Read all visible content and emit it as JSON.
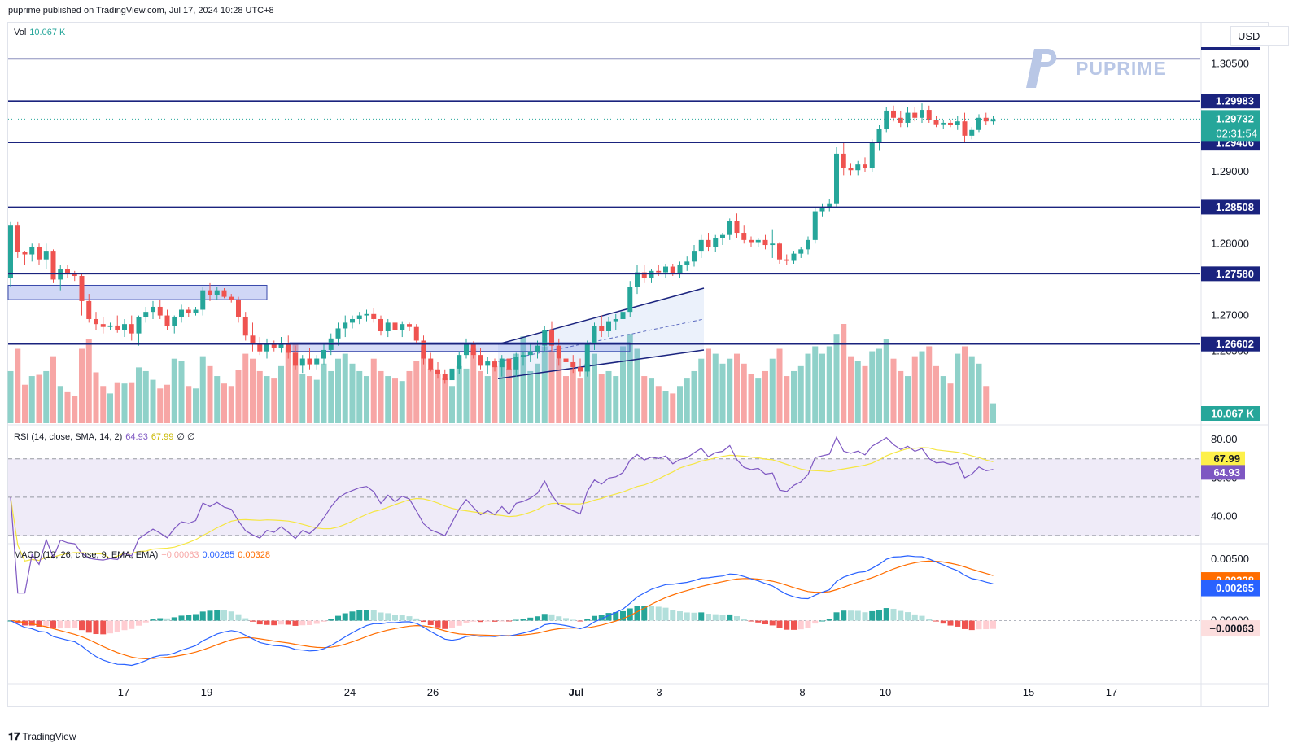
{
  "header": {
    "published": "puprime published on TradingView.com, Jul 17, 2024 10:28 UTC+8",
    "currency": "USD",
    "watermark": "PUPRIME",
    "footer": "TradingView"
  },
  "indicators": {
    "vol": {
      "name": "Vol",
      "value": "10.067 K",
      "badge": "10.067 K"
    },
    "rsi": {
      "name": "RSI (14, close, SMA, 14, 2)",
      "value": "64.93",
      "sma": "67.99",
      "extra": "∅ ∅"
    },
    "macd": {
      "name": "MACD (12, 26, close, 9, EMA, EMA)",
      "hist": "−0.00063",
      "macd": "0.00265",
      "signal": "0.00328"
    }
  },
  "colors": {
    "up": "#26a69a",
    "down": "#ef5350",
    "level_line": "#1a237e",
    "macd_line": "#2962ff",
    "signal_line": "#ff6d00",
    "rsi_line": "#7e57c2",
    "rsi_sma": "#f5e642"
  },
  "chart_data": {
    "type": "candlestick",
    "symbol": "GBPUSD",
    "price_axis": {
      "ticks": [
        "1.30500",
        "1.29000",
        "1.28000",
        "1.27000",
        "1.26500"
      ],
      "range": [
        1.255,
        1.3105
      ]
    },
    "levels": [
      {
        "value": 1.3057,
        "label": ""
      },
      {
        "value": 1.29983,
        "label": "1.29983"
      },
      {
        "value": 1.29406,
        "label": "1.29406"
      },
      {
        "value": 1.28508,
        "label": "1.28508"
      },
      {
        "value": 1.2758,
        "label": "1.27580"
      },
      {
        "value": 1.26602,
        "label": "1.26602"
      }
    ],
    "last_price": {
      "value": "1.29732",
      "countdown": "02:31:54"
    },
    "x_axis_labels": [
      "17",
      "19",
      "24",
      "26",
      "Jul",
      "3",
      "8",
      "10",
      "15",
      "17"
    ],
    "candles": [
      [
        1.2752,
        1.283,
        1.274,
        1.2825,
        420
      ],
      [
        1.2825,
        1.283,
        1.278,
        1.2788,
        600
      ],
      [
        1.2788,
        1.279,
        1.277,
        1.2785,
        310
      ],
      [
        1.2785,
        1.28,
        1.2775,
        1.2795,
        380
      ],
      [
        1.2795,
        1.28,
        1.277,
        1.2778,
        390
      ],
      [
        1.2778,
        1.28,
        1.2765,
        1.279,
        420
      ],
      [
        1.279,
        1.2792,
        1.2745,
        1.275,
        540
      ],
      [
        1.275,
        1.277,
        1.2735,
        1.2765,
        300
      ],
      [
        1.2765,
        1.277,
        1.2752,
        1.2758,
        250
      ],
      [
        1.2758,
        1.2762,
        1.2748,
        1.2755,
        220
      ],
      [
        1.2755,
        1.2758,
        1.27,
        1.272,
        600
      ],
      [
        1.272,
        1.273,
        1.269,
        1.2695,
        680
      ],
      [
        1.2695,
        1.2705,
        1.268,
        1.2688,
        410
      ],
      [
        1.2688,
        1.2698,
        1.2675,
        1.2684,
        300
      ],
      [
        1.2684,
        1.269,
        1.268,
        1.2686,
        240
      ],
      [
        1.2686,
        1.27,
        1.2676,
        1.268,
        330
      ],
      [
        1.268,
        1.2695,
        1.267,
        1.2688,
        320
      ],
      [
        1.2688,
        1.27,
        1.2665,
        1.2675,
        330
      ],
      [
        1.2675,
        1.27,
        1.2658,
        1.2698,
        450
      ],
      [
        1.2698,
        1.2712,
        1.269,
        1.2705,
        420
      ],
      [
        1.2705,
        1.272,
        1.2695,
        1.2712,
        350
      ],
      [
        1.2712,
        1.2722,
        1.2695,
        1.27,
        280
      ],
      [
        1.27,
        1.2708,
        1.268,
        1.2685,
        310
      ],
      [
        1.2685,
        1.27,
        1.2675,
        1.2698,
        520
      ],
      [
        1.2698,
        1.2715,
        1.269,
        1.2708,
        500
      ],
      [
        1.2708,
        1.2712,
        1.2698,
        1.2704,
        300
      ],
      [
        1.2704,
        1.2712,
        1.27,
        1.2708,
        280
      ],
      [
        1.2708,
        1.274,
        1.27,
        1.2735,
        540
      ],
      [
        1.2735,
        1.2745,
        1.272,
        1.2728,
        460
      ],
      [
        1.2728,
        1.274,
        1.2722,
        1.2735,
        380
      ],
      [
        1.2735,
        1.2738,
        1.2724,
        1.2726,
        320
      ],
      [
        1.2726,
        1.273,
        1.2718,
        1.2722,
        300
      ],
      [
        1.2722,
        1.2726,
        1.269,
        1.2698,
        430
      ],
      [
        1.2698,
        1.2705,
        1.2665,
        1.2672,
        560
      ],
      [
        1.2672,
        1.269,
        1.265,
        1.266,
        520
      ],
      [
        1.266,
        1.267,
        1.2645,
        1.265,
        420
      ],
      [
        1.265,
        1.2668,
        1.264,
        1.266,
        380
      ],
      [
        1.266,
        1.2665,
        1.265,
        1.2655,
        360
      ],
      [
        1.2655,
        1.267,
        1.2648,
        1.2662,
        460
      ],
      [
        1.2662,
        1.2672,
        1.264,
        1.2648,
        620
      ],
      [
        1.2648,
        1.2658,
        1.2625,
        1.263,
        640
      ],
      [
        1.263,
        1.2645,
        1.262,
        1.264,
        400
      ],
      [
        1.264,
        1.2655,
        1.2625,
        1.2632,
        380
      ],
      [
        1.2632,
        1.2645,
        1.2625,
        1.264,
        350
      ],
      [
        1.264,
        1.266,
        1.2632,
        1.2652,
        480
      ],
      [
        1.2652,
        1.2675,
        1.2645,
        1.2668,
        420
      ],
      [
        1.2668,
        1.269,
        1.2658,
        1.2682,
        520
      ],
      [
        1.2682,
        1.27,
        1.267,
        1.269,
        560
      ],
      [
        1.269,
        1.27,
        1.2682,
        1.2695,
        480
      ],
      [
        1.2695,
        1.2705,
        1.2688,
        1.27,
        420
      ],
      [
        1.27,
        1.2708,
        1.2692,
        1.2702,
        380
      ],
      [
        1.2702,
        1.271,
        1.269,
        1.2695,
        520
      ],
      [
        1.2695,
        1.27,
        1.2672,
        1.2678,
        420
      ],
      [
        1.2678,
        1.2695,
        1.267,
        1.269,
        380
      ],
      [
        1.269,
        1.2698,
        1.2675,
        1.268,
        360
      ],
      [
        1.268,
        1.2692,
        1.267,
        1.2688,
        340
      ],
      [
        1.2688,
        1.269,
        1.2678,
        1.2684,
        420
      ],
      [
        1.2684,
        1.2688,
        1.266,
        1.2665,
        500
      ],
      [
        1.2665,
        1.2672,
        1.2632,
        1.264,
        620
      ],
      [
        1.264,
        1.2648,
        1.2622,
        1.2625,
        440
      ],
      [
        1.2625,
        1.2635,
        1.2612,
        1.2618,
        400
      ],
      [
        1.2618,
        1.2625,
        1.2605,
        1.261,
        360
      ],
      [
        1.261,
        1.263,
        1.2602,
        1.2626,
        300
      ],
      [
        1.2626,
        1.265,
        1.2618,
        1.2645,
        460
      ],
      [
        1.2645,
        1.2668,
        1.264,
        1.266,
        440
      ],
      [
        1.266,
        1.2664,
        1.264,
        1.2645,
        600
      ],
      [
        1.2645,
        1.2655,
        1.2625,
        1.263,
        420
      ],
      [
        1.263,
        1.2642,
        1.2618,
        1.2636,
        380
      ],
      [
        1.2636,
        1.264,
        1.2622,
        1.2628,
        460
      ],
      [
        1.2628,
        1.2645,
        1.2615,
        1.264,
        500
      ],
      [
        1.264,
        1.265,
        1.2618,
        1.2625,
        440
      ],
      [
        1.2625,
        1.2648,
        1.2615,
        1.2642,
        560
      ],
      [
        1.2642,
        1.265,
        1.263,
        1.2645,
        700
      ],
      [
        1.2645,
        1.266,
        1.2635,
        1.265,
        420
      ],
      [
        1.265,
        1.2665,
        1.264,
        1.2658,
        480
      ],
      [
        1.2658,
        1.2685,
        1.265,
        1.268,
        620
      ],
      [
        1.268,
        1.2692,
        1.265,
        1.2658,
        580
      ],
      [
        1.2658,
        1.2668,
        1.263,
        1.264,
        520
      ],
      [
        1.264,
        1.265,
        1.2625,
        1.2635,
        380
      ],
      [
        1.2635,
        1.2645,
        1.262,
        1.2628,
        440
      ],
      [
        1.2628,
        1.264,
        1.2615,
        1.2622,
        360
      ],
      [
        1.2622,
        1.2665,
        1.2615,
        1.266,
        480
      ],
      [
        1.266,
        1.269,
        1.2652,
        1.2685,
        560
      ],
      [
        1.2685,
        1.27,
        1.267,
        1.2678,
        400
      ],
      [
        1.2678,
        1.2698,
        1.267,
        1.2692,
        420
      ],
      [
        1.2692,
        1.2702,
        1.268,
        1.2695,
        380
      ],
      [
        1.2695,
        1.2712,
        1.2688,
        1.2705,
        620
      ],
      [
        1.2705,
        1.2748,
        1.2698,
        1.274,
        720
      ],
      [
        1.274,
        1.277,
        1.273,
        1.276,
        600
      ],
      [
        1.276,
        1.277,
        1.2745,
        1.2752,
        380
      ],
      [
        1.2752,
        1.2765,
        1.2745,
        1.2762,
        360
      ],
      [
        1.2762,
        1.277,
        1.2755,
        1.276,
        300
      ],
      [
        1.276,
        1.2772,
        1.2752,
        1.2768,
        260
      ],
      [
        1.2768,
        1.2772,
        1.2755,
        1.2758,
        240
      ],
      [
        1.2758,
        1.2775,
        1.2752,
        1.277,
        300
      ],
      [
        1.277,
        1.2782,
        1.2762,
        1.2775,
        360
      ],
      [
        1.2775,
        1.2798,
        1.2768,
        1.279,
        420
      ],
      [
        1.279,
        1.2812,
        1.278,
        1.2805,
        520
      ],
      [
        1.2805,
        1.2815,
        1.279,
        1.2795,
        600
      ],
      [
        1.2795,
        1.2812,
        1.2788,
        1.2808,
        560
      ],
      [
        1.2808,
        1.2815,
        1.2798,
        1.2812,
        480
      ],
      [
        1.2812,
        1.2835,
        1.2805,
        1.2832,
        520
      ],
      [
        1.2832,
        1.2842,
        1.2808,
        1.2815,
        560
      ],
      [
        1.2815,
        1.2825,
        1.28,
        1.2805,
        480
      ],
      [
        1.2805,
        1.281,
        1.2795,
        1.2802,
        400
      ],
      [
        1.2802,
        1.2808,
        1.2795,
        1.2805,
        360
      ],
      [
        1.2805,
        1.2812,
        1.2792,
        1.2798,
        420
      ],
      [
        1.2798,
        1.282,
        1.278,
        1.28,
        520
      ],
      [
        1.28,
        1.2802,
        1.2772,
        1.2778,
        600
      ],
      [
        1.2778,
        1.2785,
        1.277,
        1.2776,
        380
      ],
      [
        1.2776,
        1.279,
        1.2772,
        1.2786,
        420
      ],
      [
        1.2786,
        1.2795,
        1.278,
        1.2792,
        460
      ],
      [
        1.2792,
        1.281,
        1.2785,
        1.2805,
        560
      ],
      [
        1.2805,
        1.285,
        1.28,
        1.2845,
        620
      ],
      [
        1.2845,
        1.2855,
        1.2838,
        1.285,
        560
      ],
      [
        1.285,
        1.2862,
        1.2845,
        1.2855,
        620
      ],
      [
        1.2855,
        1.2935,
        1.285,
        1.2925,
        720
      ],
      [
        1.2925,
        1.294,
        1.2895,
        1.2905,
        800
      ],
      [
        1.2905,
        1.2912,
        1.2895,
        1.2902,
        540
      ],
      [
        1.2902,
        1.2915,
        1.2895,
        1.291,
        500
      ],
      [
        1.291,
        1.292,
        1.29,
        1.2905,
        460
      ],
      [
        1.2905,
        1.2945,
        1.29,
        1.294,
        580
      ],
      [
        1.294,
        1.2965,
        1.293,
        1.296,
        600
      ],
      [
        1.296,
        1.299,
        1.2955,
        1.2985,
        680
      ],
      [
        1.2985,
        1.2992,
        1.297,
        1.2975,
        520
      ],
      [
        1.2975,
        1.2985,
        1.2962,
        1.2968,
        420
      ],
      [
        1.2968,
        1.299,
        1.2962,
        1.2982,
        380
      ],
      [
        1.2982,
        1.299,
        1.297,
        1.2975,
        540
      ],
      [
        1.2975,
        1.2995,
        1.2968,
        1.2986,
        580
      ],
      [
        1.2986,
        1.2992,
        1.2968,
        1.2972,
        620
      ],
      [
        1.2972,
        1.2978,
        1.2962,
        1.2966,
        460
      ],
      [
        1.2966,
        1.2972,
        1.296,
        1.2968,
        380
      ],
      [
        1.2968,
        1.2972,
        1.2962,
        1.2965,
        320
      ],
      [
        1.2965,
        1.2978,
        1.2958,
        1.297,
        560
      ],
      [
        1.297,
        1.2982,
        1.294,
        1.295,
        620
      ],
      [
        1.295,
        1.2962,
        1.2945,
        1.2958,
        540
      ],
      [
        1.2958,
        1.298,
        1.2955,
        1.2975,
        480
      ],
      [
        1.2975,
        1.2982,
        1.2965,
        1.297,
        300
      ],
      [
        1.297,
        1.2978,
        1.2966,
        1.2973,
        160
      ]
    ],
    "rsi": {
      "levels": [
        70,
        50,
        30
      ],
      "ticks": [
        "80.00",
        "60.00",
        "40.00"
      ],
      "range": [
        27,
        86
      ],
      "value": 64.93,
      "sma": 67.99
    },
    "macd": {
      "ticks": [
        "0.00500",
        "0.00000"
      ],
      "range": [
        -0.005,
        0.006
      ],
      "macd": 0.00265,
      "signal": 0.00328,
      "hist": -0.00063
    }
  }
}
